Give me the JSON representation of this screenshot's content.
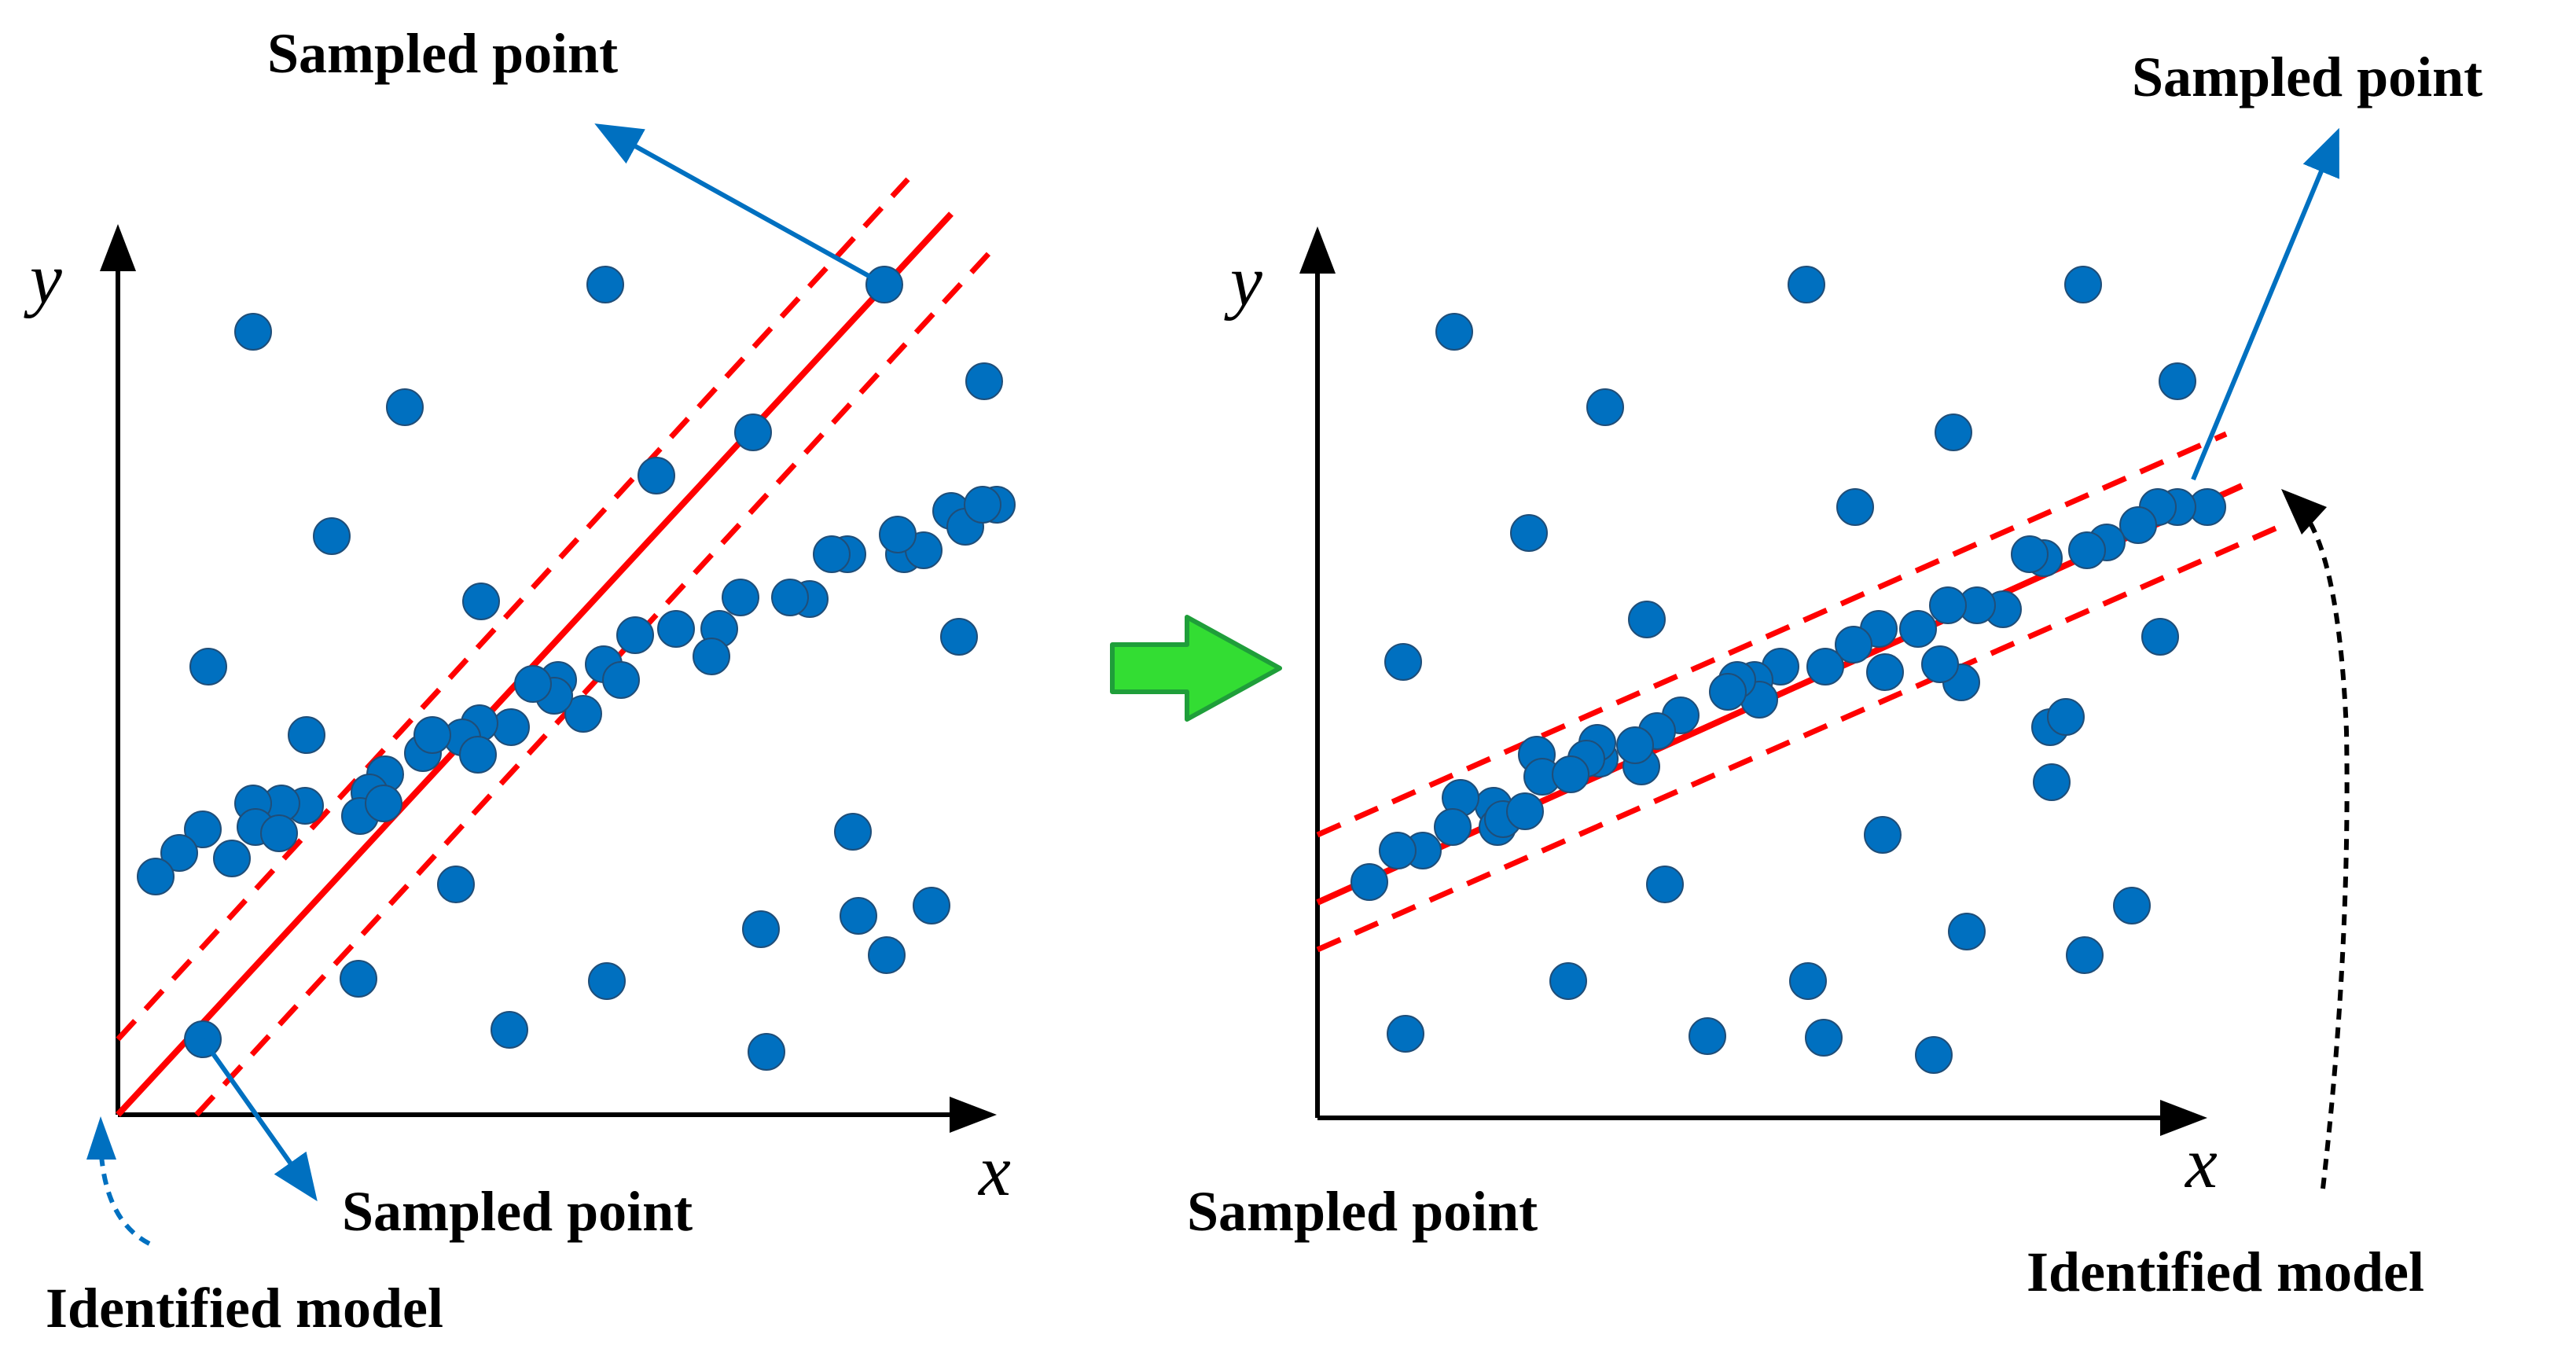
{
  "colors": {
    "point": "#0070C0",
    "point_stroke": "#1F4E79",
    "fit_line": "#FF0000",
    "arrow_blue": "#0070C0",
    "arrow_green": "#33DD33",
    "arrow_green_stroke": "#1F9E3A",
    "axis": "#000000"
  },
  "panels": [
    {
      "id": "left",
      "x_axis_label": "x",
      "y_axis_label": "y",
      "annotations": {
        "sampled_point_top": "Sampled point",
        "sampled_point_bottom": "Sampled point",
        "identified_model": "Identified model"
      }
    },
    {
      "id": "right",
      "x_axis_label": "x",
      "y_axis_label": "y",
      "annotations": {
        "sampled_point_top": "Sampled point",
        "sampled_point_bottom": "Sampled point",
        "identified_model": "Identified model"
      }
    }
  ],
  "transition_icon": "right-arrow-icon"
}
